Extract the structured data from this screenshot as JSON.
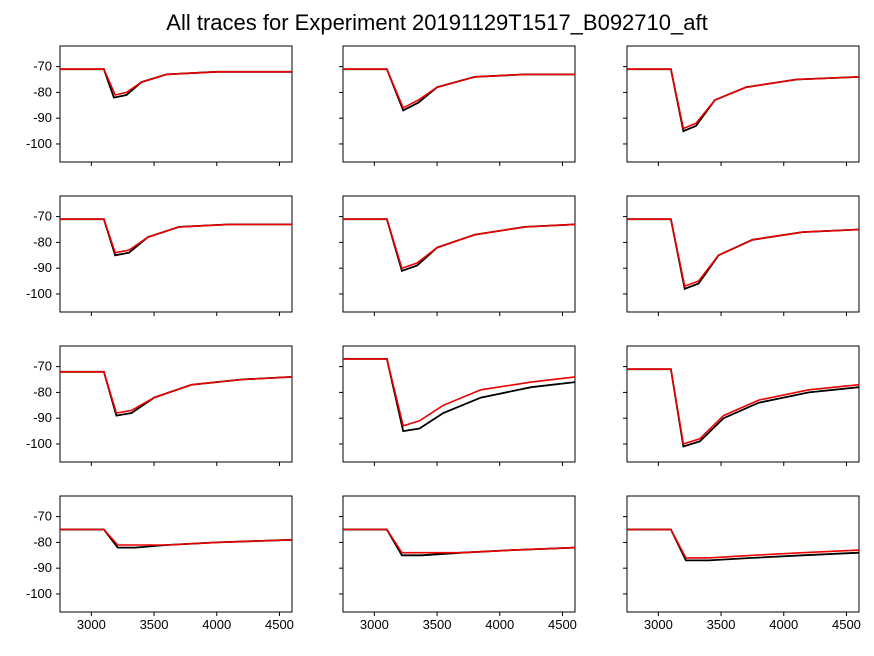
{
  "title": {
    "text": "All traces for Experiment 20191129T1517_B092710_aft",
    "fontsize": 22,
    "fontweight": 400,
    "color": "#000000"
  },
  "layout": {
    "rows": 4,
    "cols": 3,
    "background_color": "#ffffff",
    "panel_gap_x": 8,
    "panel_gap_y": 8
  },
  "axes": {
    "xlim": [
      2750,
      4600
    ],
    "ylim": [
      -107,
      -62
    ],
    "xticks": [
      3000,
      3500,
      4000,
      4500
    ],
    "yticks": [
      -70,
      -80,
      -90,
      -100
    ],
    "tick_fontsize": 13,
    "tick_color": "#000000",
    "show_xticklabels_only_bottom_row": true,
    "show_yticklabels_only_left_col": true,
    "spine_color": "#000000",
    "spine_width": 1
  },
  "series_style": {
    "black": {
      "color": "#000000",
      "width": 1.8
    },
    "red": {
      "color": "#ee0000",
      "width": 1.6
    }
  },
  "panels": [
    {
      "r": 0,
      "c": 0,
      "black": [
        [
          2750,
          -71
        ],
        [
          3100,
          -71
        ],
        [
          3180,
          -82
        ],
        [
          3280,
          -81
        ],
        [
          3400,
          -76
        ],
        [
          3600,
          -73
        ],
        [
          4000,
          -72
        ],
        [
          4600,
          -72
        ]
      ],
      "red": [
        [
          2750,
          -71
        ],
        [
          3100,
          -71
        ],
        [
          3190,
          -81
        ],
        [
          3280,
          -80
        ],
        [
          3400,
          -76
        ],
        [
          3600,
          -73
        ],
        [
          4000,
          -72
        ],
        [
          4600,
          -72
        ]
      ]
    },
    {
      "r": 0,
      "c": 1,
      "black": [
        [
          2750,
          -71
        ],
        [
          3100,
          -71
        ],
        [
          3230,
          -87
        ],
        [
          3350,
          -84
        ],
        [
          3500,
          -78
        ],
        [
          3800,
          -74
        ],
        [
          4200,
          -73
        ],
        [
          4600,
          -73
        ]
      ],
      "red": [
        [
          2750,
          -71
        ],
        [
          3100,
          -71
        ],
        [
          3230,
          -86
        ],
        [
          3350,
          -83
        ],
        [
          3500,
          -78
        ],
        [
          3800,
          -74
        ],
        [
          4200,
          -73
        ],
        [
          4600,
          -73
        ]
      ]
    },
    {
      "r": 0,
      "c": 2,
      "black": [
        [
          2750,
          -71
        ],
        [
          3100,
          -71
        ],
        [
          3200,
          -95
        ],
        [
          3300,
          -93
        ],
        [
          3450,
          -83
        ],
        [
          3700,
          -78
        ],
        [
          4100,
          -75
        ],
        [
          4600,
          -74
        ]
      ],
      "red": [
        [
          2750,
          -71
        ],
        [
          3100,
          -71
        ],
        [
          3200,
          -94
        ],
        [
          3300,
          -92
        ],
        [
          3450,
          -83
        ],
        [
          3700,
          -78
        ],
        [
          4100,
          -75
        ],
        [
          4600,
          -74
        ]
      ]
    },
    {
      "r": 1,
      "c": 0,
      "black": [
        [
          2750,
          -71
        ],
        [
          3100,
          -71
        ],
        [
          3190,
          -85
        ],
        [
          3300,
          -84
        ],
        [
          3450,
          -78
        ],
        [
          3700,
          -74
        ],
        [
          4100,
          -73
        ],
        [
          4600,
          -73
        ]
      ],
      "red": [
        [
          2750,
          -71
        ],
        [
          3100,
          -71
        ],
        [
          3190,
          -84
        ],
        [
          3300,
          -83
        ],
        [
          3450,
          -78
        ],
        [
          3700,
          -74
        ],
        [
          4100,
          -73
        ],
        [
          4600,
          -73
        ]
      ]
    },
    {
      "r": 1,
      "c": 1,
      "black": [
        [
          2750,
          -71
        ],
        [
          3100,
          -71
        ],
        [
          3220,
          -91
        ],
        [
          3340,
          -89
        ],
        [
          3500,
          -82
        ],
        [
          3800,
          -77
        ],
        [
          4200,
          -74
        ],
        [
          4600,
          -73
        ]
      ],
      "red": [
        [
          2750,
          -71
        ],
        [
          3100,
          -71
        ],
        [
          3220,
          -90
        ],
        [
          3340,
          -88
        ],
        [
          3500,
          -82
        ],
        [
          3800,
          -77
        ],
        [
          4200,
          -74
        ],
        [
          4600,
          -73
        ]
      ]
    },
    {
      "r": 1,
      "c": 2,
      "black": [
        [
          2750,
          -71
        ],
        [
          3100,
          -71
        ],
        [
          3210,
          -98
        ],
        [
          3320,
          -96
        ],
        [
          3480,
          -85
        ],
        [
          3750,
          -79
        ],
        [
          4150,
          -76
        ],
        [
          4600,
          -75
        ]
      ],
      "red": [
        [
          2750,
          -71
        ],
        [
          3100,
          -71
        ],
        [
          3210,
          -97
        ],
        [
          3320,
          -95
        ],
        [
          3480,
          -85
        ],
        [
          3750,
          -79
        ],
        [
          4150,
          -76
        ],
        [
          4600,
          -75
        ]
      ]
    },
    {
      "r": 2,
      "c": 0,
      "black": [
        [
          2750,
          -72
        ],
        [
          3100,
          -72
        ],
        [
          3200,
          -89
        ],
        [
          3320,
          -88
        ],
        [
          3500,
          -82
        ],
        [
          3800,
          -77
        ],
        [
          4200,
          -75
        ],
        [
          4600,
          -74
        ]
      ],
      "red": [
        [
          2750,
          -72
        ],
        [
          3100,
          -72
        ],
        [
          3200,
          -88
        ],
        [
          3320,
          -87
        ],
        [
          3500,
          -82
        ],
        [
          3800,
          -77
        ],
        [
          4200,
          -75
        ],
        [
          4600,
          -74
        ]
      ]
    },
    {
      "r": 2,
      "c": 1,
      "black": [
        [
          2750,
          -67
        ],
        [
          3100,
          -67
        ],
        [
          3230,
          -95
        ],
        [
          3360,
          -94
        ],
        [
          3550,
          -88
        ],
        [
          3850,
          -82
        ],
        [
          4250,
          -78
        ],
        [
          4600,
          -76
        ]
      ],
      "red": [
        [
          2750,
          -67
        ],
        [
          3100,
          -67
        ],
        [
          3230,
          -93
        ],
        [
          3360,
          -91
        ],
        [
          3550,
          -85
        ],
        [
          3850,
          -79
        ],
        [
          4250,
          -76
        ],
        [
          4600,
          -74
        ]
      ]
    },
    {
      "r": 2,
      "c": 2,
      "black": [
        [
          2750,
          -71
        ],
        [
          3100,
          -71
        ],
        [
          3200,
          -101
        ],
        [
          3330,
          -99
        ],
        [
          3520,
          -90
        ],
        [
          3800,
          -84
        ],
        [
          4200,
          -80
        ],
        [
          4600,
          -78
        ]
      ],
      "red": [
        [
          2750,
          -71
        ],
        [
          3100,
          -71
        ],
        [
          3200,
          -100
        ],
        [
          3330,
          -98
        ],
        [
          3520,
          -89
        ],
        [
          3800,
          -83
        ],
        [
          4200,
          -79
        ],
        [
          4600,
          -77
        ]
      ]
    },
    {
      "r": 3,
      "c": 0,
      "black": [
        [
          2750,
          -75
        ],
        [
          3100,
          -75
        ],
        [
          3210,
          -82
        ],
        [
          3350,
          -82
        ],
        [
          3600,
          -81
        ],
        [
          4000,
          -80
        ],
        [
          4600,
          -79
        ]
      ],
      "red": [
        [
          2750,
          -75
        ],
        [
          3100,
          -75
        ],
        [
          3210,
          -81
        ],
        [
          3350,
          -81
        ],
        [
          3600,
          -81
        ],
        [
          4000,
          -80
        ],
        [
          4600,
          -79
        ]
      ]
    },
    {
      "r": 3,
      "c": 1,
      "black": [
        [
          2750,
          -75
        ],
        [
          3100,
          -75
        ],
        [
          3220,
          -85
        ],
        [
          3380,
          -85
        ],
        [
          3700,
          -84
        ],
        [
          4100,
          -83
        ],
        [
          4600,
          -82
        ]
      ],
      "red": [
        [
          2750,
          -75
        ],
        [
          3100,
          -75
        ],
        [
          3220,
          -84
        ],
        [
          3380,
          -84
        ],
        [
          3700,
          -84
        ],
        [
          4100,
          -83
        ],
        [
          4600,
          -82
        ]
      ]
    },
    {
      "r": 3,
      "c": 2,
      "black": [
        [
          2750,
          -75
        ],
        [
          3100,
          -75
        ],
        [
          3220,
          -87
        ],
        [
          3400,
          -87
        ],
        [
          3750,
          -86
        ],
        [
          4150,
          -85
        ],
        [
          4600,
          -84
        ]
      ],
      "red": [
        [
          2750,
          -75
        ],
        [
          3100,
          -75
        ],
        [
          3220,
          -86
        ],
        [
          3400,
          -86
        ],
        [
          3750,
          -85
        ],
        [
          4150,
          -84
        ],
        [
          4600,
          -83
        ]
      ]
    }
  ]
}
